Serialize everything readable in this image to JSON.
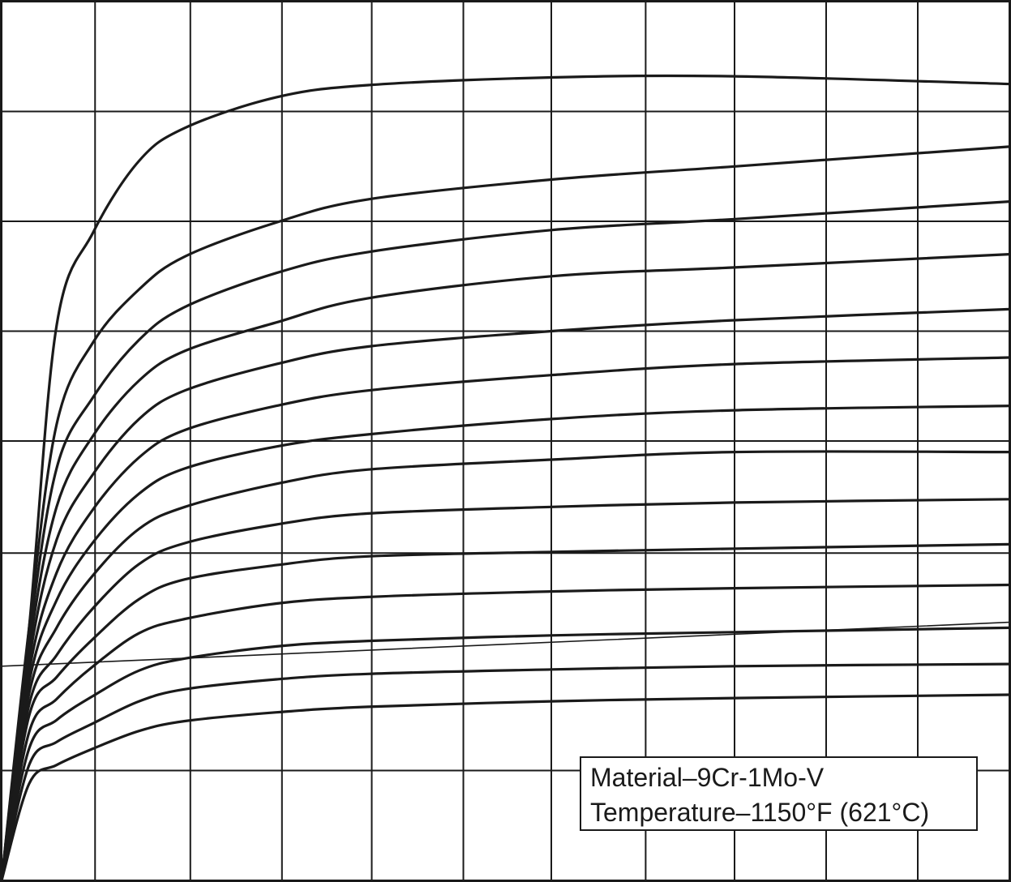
{
  "chart_data": {
    "type": "line",
    "title": "",
    "xlabel": "",
    "ylabel": "",
    "xlim": [
      0,
      11
    ],
    "ylim": [
      0,
      8
    ],
    "grid": true,
    "x_gridlines": [
      1.02,
      2.06,
      3.06,
      4.04,
      5.04,
      6.0,
      7.03,
      8.0,
      9.0,
      10.0
    ],
    "y_gridlines": [
      1.0,
      2.98,
      4.0,
      5.0,
      6.0,
      7.0
    ],
    "legend_position": "bottom-right",
    "legend": {
      "lines": [
        "Material–9Cr-1Mo-V",
        "Temperature–1150°F (621°C)"
      ]
    },
    "series": [
      {
        "x": [
          0,
          0.3,
          0.6,
          1.0,
          1.5,
          2.0,
          3.0,
          4.0,
          6.0,
          8.0,
          11.0
        ],
        "y": [
          0,
          2.3,
          5.05,
          5.9,
          6.55,
          6.85,
          7.13,
          7.24,
          7.31,
          7.32,
          7.25
        ]
      },
      {
        "x": [
          0,
          0.3,
          0.6,
          1.0,
          1.5,
          2.0,
          3.0,
          4.0,
          6.0,
          8.0,
          11.0
        ],
        "y": [
          0,
          2.3,
          4.15,
          4.9,
          5.38,
          5.68,
          5.99,
          6.2,
          6.38,
          6.5,
          6.68
        ]
      },
      {
        "x": [
          0,
          0.3,
          0.6,
          1.0,
          1.5,
          2.0,
          3.0,
          4.0,
          6.0,
          8.0,
          11.0
        ],
        "y": [
          0,
          2.2,
          3.75,
          4.4,
          4.92,
          5.22,
          5.53,
          5.72,
          5.92,
          6.02,
          6.18
        ]
      },
      {
        "x": [
          0,
          0.3,
          0.6,
          1.0,
          1.5,
          2.0,
          3.0,
          4.0,
          6.0,
          8.0,
          11.0
        ],
        "y": [
          0,
          2.1,
          3.4,
          4.05,
          4.55,
          4.82,
          5.08,
          5.3,
          5.5,
          5.58,
          5.7
        ]
      },
      {
        "x": [
          0,
          0.3,
          0.6,
          1.0,
          1.5,
          2.0,
          3.0,
          4.0,
          6.0,
          8.0,
          11.0
        ],
        "y": [
          0,
          2.0,
          3.1,
          3.7,
          4.2,
          4.46,
          4.7,
          4.86,
          5.0,
          5.1,
          5.2
        ]
      },
      {
        "x": [
          0,
          0.3,
          0.6,
          1.0,
          1.5,
          2.0,
          3.0,
          4.0,
          6.0,
          8.0,
          11.0
        ],
        "y": [
          0,
          1.9,
          2.8,
          3.38,
          3.85,
          4.1,
          4.32,
          4.46,
          4.6,
          4.7,
          4.76
        ]
      },
      {
        "x": [
          0,
          0.3,
          0.6,
          1.0,
          1.5,
          2.0,
          3.0,
          4.0,
          6.0,
          8.0,
          11.0
        ],
        "y": [
          0,
          1.8,
          2.55,
          3.08,
          3.52,
          3.75,
          3.95,
          4.06,
          4.2,
          4.28,
          4.32
        ]
      },
      {
        "x": [
          0,
          0.3,
          0.6,
          1.0,
          1.5,
          2.0,
          3.0,
          4.0,
          6.0,
          8.0,
          11.0
        ],
        "y": [
          0,
          1.7,
          2.3,
          2.78,
          3.2,
          3.4,
          3.61,
          3.74,
          3.83,
          3.9,
          3.9
        ]
      },
      {
        "x": [
          0,
          0.3,
          0.6,
          1.0,
          1.5,
          2.0,
          3.0,
          4.0,
          6.0,
          8.0,
          11.0
        ],
        "y": [
          0,
          1.6,
          2.05,
          2.48,
          2.88,
          3.07,
          3.24,
          3.34,
          3.4,
          3.44,
          3.47
        ]
      },
      {
        "x": [
          0,
          0.3,
          0.6,
          1.0,
          1.5,
          2.0,
          3.0,
          4.0,
          6.0,
          8.0,
          11.0
        ],
        "y": [
          0,
          1.5,
          1.85,
          2.2,
          2.56,
          2.74,
          2.87,
          2.95,
          2.99,
          3.02,
          3.06
        ]
      },
      {
        "x": [
          0,
          0.3,
          0.6,
          1.0,
          1.5,
          2.0,
          3.0,
          4.0,
          6.0,
          8.0,
          11.0
        ],
        "y": [
          0,
          1.35,
          1.65,
          1.95,
          2.25,
          2.38,
          2.52,
          2.58,
          2.63,
          2.66,
          2.69
        ]
      },
      {
        "x": [
          0,
          0.3,
          0.6,
          1.0,
          1.5,
          2.0,
          3.0,
          4.0,
          6.0,
          8.0,
          11.0
        ],
        "y": [
          0,
          1.2,
          1.46,
          1.68,
          1.91,
          2.02,
          2.13,
          2.18,
          2.23,
          2.26,
          2.3
        ]
      },
      {
        "x": [
          0,
          0.3,
          0.6,
          1.0,
          1.5,
          2.0,
          3.0,
          4.0,
          6.0,
          8.0,
          11.0
        ],
        "y": [
          0,
          1.05,
          1.26,
          1.43,
          1.63,
          1.74,
          1.83,
          1.88,
          1.92,
          1.95,
          1.97
        ]
      },
      {
        "x": [
          0,
          0.3,
          0.6,
          1.0,
          1.5,
          2.0,
          3.0,
          4.0,
          6.0,
          8.0,
          11.0
        ],
        "y": [
          0,
          0.88,
          1.05,
          1.2,
          1.36,
          1.45,
          1.53,
          1.58,
          1.63,
          1.66,
          1.69
        ]
      },
      {
        "x": [
          0,
          11.0
        ],
        "y": [
          1.95,
          2.35
        ],
        "thin": true
      }
    ]
  }
}
